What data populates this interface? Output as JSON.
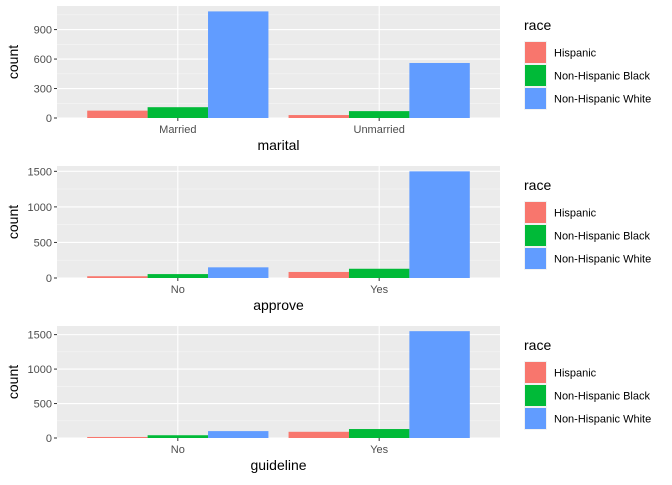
{
  "chart_data": [
    {
      "type": "bar",
      "xlabel": "marital",
      "ylabel": "count",
      "categories": [
        "Married",
        "Unmarried"
      ],
      "yticks": [
        0,
        300,
        600,
        900
      ],
      "ylim": [
        0,
        1140
      ],
      "grid": true,
      "legend": {
        "title": "race",
        "position": "right"
      },
      "series": [
        {
          "name": "Hispanic",
          "color": "#F8766D",
          "values": [
            75,
            30
          ]
        },
        {
          "name": "Non-Hispanic Black",
          "color": "#00BA38",
          "values": [
            110,
            70
          ]
        },
        {
          "name": "Non-Hispanic White",
          "color": "#619CFF",
          "values": [
            1085,
            560
          ]
        }
      ]
    },
    {
      "type": "bar",
      "xlabel": "approve",
      "ylabel": "count",
      "categories": [
        "No",
        "Yes"
      ],
      "yticks": [
        0,
        500,
        1000,
        1500
      ],
      "ylim": [
        0,
        1575
      ],
      "grid": true,
      "legend": {
        "title": "race",
        "position": "right"
      },
      "series": [
        {
          "name": "Hispanic",
          "color": "#F8766D",
          "values": [
            25,
            85
          ]
        },
        {
          "name": "Non-Hispanic Black",
          "color": "#00BA38",
          "values": [
            55,
            130
          ]
        },
        {
          "name": "Non-Hispanic White",
          "color": "#619CFF",
          "values": [
            150,
            1500
          ]
        }
      ]
    },
    {
      "type": "bar",
      "xlabel": "guideline",
      "ylabel": "count",
      "categories": [
        "No",
        "Yes"
      ],
      "yticks": [
        0,
        500,
        1000,
        1500
      ],
      "ylim": [
        0,
        1625
      ],
      "grid": true,
      "legend": {
        "title": "race",
        "position": "right"
      },
      "series": [
        {
          "name": "Hispanic",
          "color": "#F8766D",
          "values": [
            15,
            90
          ]
        },
        {
          "name": "Non-Hispanic Black",
          "color": "#00BA38",
          "values": [
            40,
            130
          ]
        },
        {
          "name": "Non-Hispanic White",
          "color": "#619CFF",
          "values": [
            100,
            1550
          ]
        }
      ]
    }
  ]
}
